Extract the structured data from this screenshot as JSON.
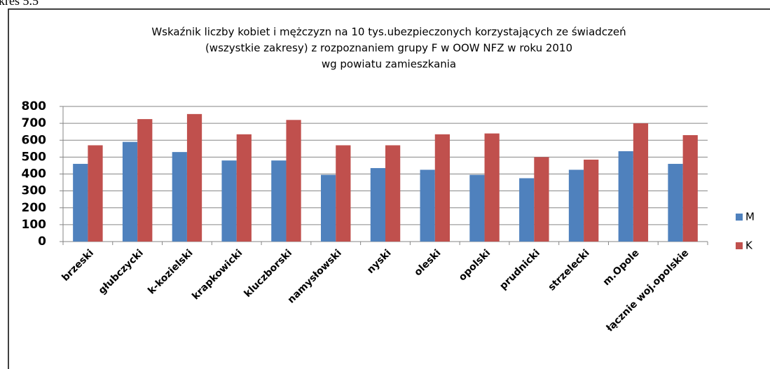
{
  "caption": "kres 5.5",
  "chart_data": {
    "type": "bar",
    "title": [
      "Wskaźnik liczby kobiet i mężczyzn na 10 tys.ubezpieczonych korzystających ze świadczeń",
      "(wszystkie zakresy) z rozpoznaniem grupy F w OOW NFZ w roku 2010",
      "wg powiatu zamieszkania"
    ],
    "categories": [
      "brzeski",
      "głubczycki",
      "k-kozielski",
      "krapkowicki",
      "kluczborski",
      "namysłowski",
      "nyski",
      "oleski",
      "opolski",
      "prudnicki",
      "strzelecki",
      "m.Opole",
      "łącznie woj.opolskie"
    ],
    "series": [
      {
        "name": "M",
        "color": "#4f81bd",
        "values": [
          460,
          590,
          530,
          480,
          480,
          395,
          435,
          425,
          395,
          375,
          425,
          535,
          460
        ]
      },
      {
        "name": "K",
        "color": "#c0504d",
        "values": [
          570,
          725,
          755,
          635,
          720,
          570,
          570,
          635,
          640,
          500,
          485,
          700,
          630
        ]
      }
    ],
    "ylim": [
      0,
      800
    ],
    "yticks": [
      0,
      100,
      200,
      300,
      400,
      500,
      600,
      700,
      800
    ],
    "grid": true,
    "legend": "right"
  }
}
